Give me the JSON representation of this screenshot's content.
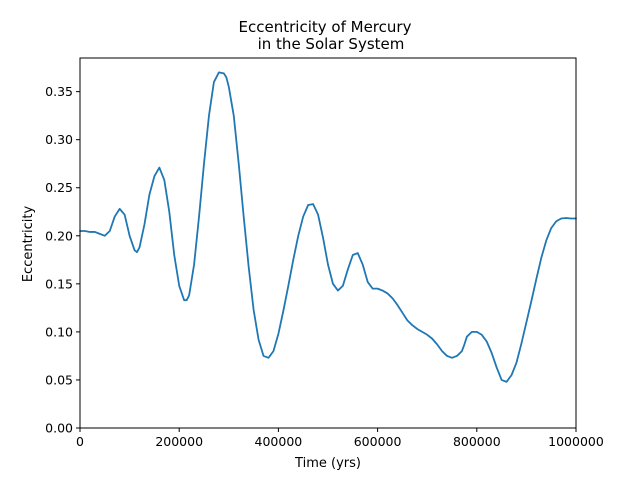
{
  "chart_data": {
    "type": "line",
    "title_line1": "Eccentricity of Mercury",
    "title_line2": "in the Solar System",
    "xlabel": "Time (yrs)",
    "ylabel": "Eccentricity",
    "xlim": [
      0,
      1000000
    ],
    "ylim": [
      0,
      0.385
    ],
    "xticks": [
      0,
      200000,
      400000,
      600000,
      800000,
      1000000
    ],
    "xtick_labels": [
      "0",
      "200000",
      "400000",
      "600000",
      "800000",
      "1000000"
    ],
    "yticks": [
      0,
      0.05,
      0.1,
      0.15,
      0.2,
      0.25,
      0.3,
      0.35
    ],
    "ytick_labels": [
      "0.00",
      "0.05",
      "0.10",
      "0.15",
      "0.20",
      "0.25",
      "0.30",
      "0.35"
    ],
    "grid": false,
    "line_color": "#1f77b4",
    "x": [
      0,
      10000,
      20000,
      30000,
      40000,
      50000,
      60000,
      70000,
      80000,
      90000,
      100000,
      110000,
      115000,
      120000,
      130000,
      140000,
      150000,
      160000,
      170000,
      180000,
      190000,
      200000,
      210000,
      215000,
      220000,
      230000,
      240000,
      250000,
      260000,
      270000,
      280000,
      290000,
      295000,
      300000,
      310000,
      320000,
      330000,
      340000,
      350000,
      360000,
      370000,
      380000,
      390000,
      400000,
      410000,
      420000,
      430000,
      440000,
      450000,
      460000,
      470000,
      480000,
      490000,
      500000,
      510000,
      520000,
      530000,
      540000,
      550000,
      560000,
      570000,
      580000,
      590000,
      600000,
      610000,
      620000,
      630000,
      640000,
      650000,
      660000,
      670000,
      680000,
      690000,
      700000,
      710000,
      720000,
      730000,
      740000,
      750000,
      760000,
      770000,
      775000,
      780000,
      790000,
      800000,
      810000,
      820000,
      830000,
      840000,
      850000,
      860000,
      870000,
      880000,
      890000,
      900000,
      910000,
      920000,
      930000,
      940000,
      950000,
      960000,
      970000,
      980000,
      990000,
      1000000
    ],
    "y": [
      0.205,
      0.205,
      0.204,
      0.204,
      0.202,
      0.2,
      0.205,
      0.22,
      0.228,
      0.222,
      0.2,
      0.185,
      0.183,
      0.188,
      0.212,
      0.243,
      0.262,
      0.271,
      0.258,
      0.225,
      0.18,
      0.148,
      0.133,
      0.133,
      0.138,
      0.17,
      0.22,
      0.275,
      0.325,
      0.36,
      0.37,
      0.369,
      0.365,
      0.355,
      0.325,
      0.275,
      0.22,
      0.168,
      0.123,
      0.092,
      0.075,
      0.073,
      0.08,
      0.098,
      0.122,
      0.148,
      0.175,
      0.2,
      0.22,
      0.232,
      0.233,
      0.222,
      0.198,
      0.17,
      0.15,
      0.143,
      0.148,
      0.165,
      0.18,
      0.182,
      0.17,
      0.152,
      0.145,
      0.145,
      0.143,
      0.14,
      0.135,
      0.128,
      0.12,
      0.112,
      0.107,
      0.103,
      0.1,
      0.097,
      0.093,
      0.087,
      0.08,
      0.075,
      0.073,
      0.075,
      0.08,
      0.087,
      0.095,
      0.1,
      0.1,
      0.097,
      0.09,
      0.078,
      0.063,
      0.05,
      0.048,
      0.055,
      0.068,
      0.088,
      0.11,
      0.132,
      0.155,
      0.177,
      0.195,
      0.208,
      0.215,
      0.218,
      0.2185,
      0.218,
      0.218
    ]
  }
}
